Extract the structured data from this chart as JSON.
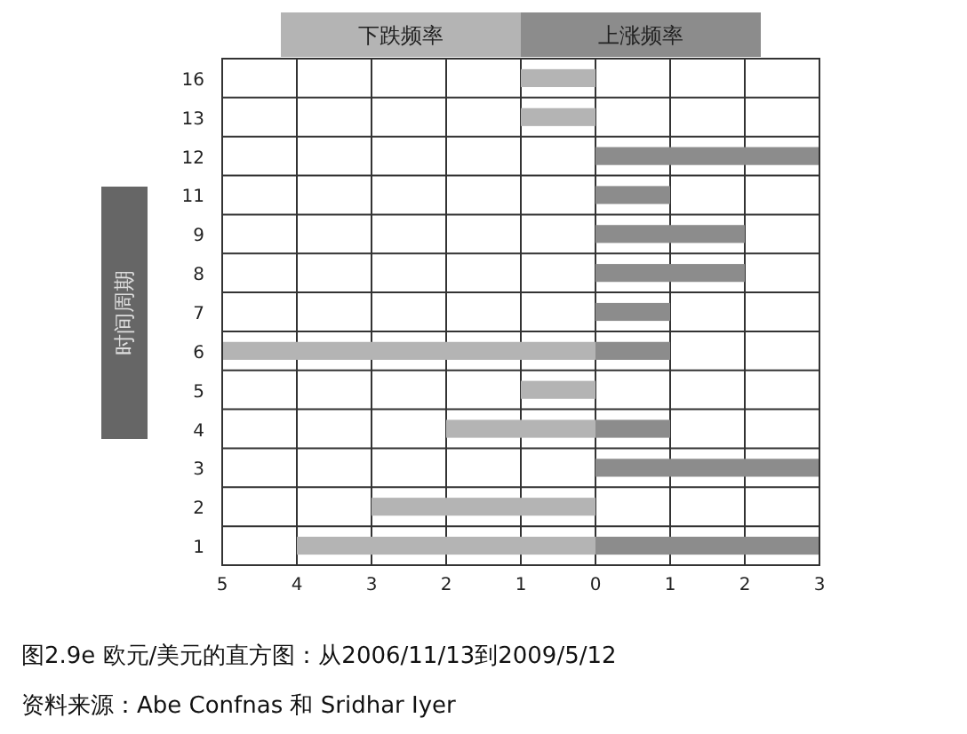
{
  "chart_data": {
    "type": "bar",
    "orientation": "horizontal",
    "stacked": true,
    "categories": [
      "16",
      "13",
      "12",
      "11",
      "9",
      "8",
      "7",
      "6",
      "5",
      "4",
      "3",
      "2",
      "1"
    ],
    "series": [
      {
        "name": "下跌频率",
        "color": "#b4b4b4",
        "values": [
          -1,
          -1,
          null,
          null,
          null,
          null,
          null,
          -5,
          -1,
          -2,
          null,
          -3,
          -4
        ]
      },
      {
        "name": "上涨频率",
        "color": "#8c8c8c",
        "values": [
          null,
          null,
          3,
          1,
          2,
          2,
          1,
          1,
          null,
          1,
          3,
          null,
          3
        ]
      }
    ],
    "xlim": [
      -5,
      3
    ],
    "xticks": [
      {
        "value": -5,
        "label": "5"
      },
      {
        "value": -4,
        "label": "4"
      },
      {
        "value": -3,
        "label": "3"
      },
      {
        "value": -2,
        "label": "2"
      },
      {
        "value": -1,
        "label": "1"
      },
      0,
      1,
      2,
      3
    ],
    "ylabel": "时间周期",
    "legend": "top",
    "grid": true,
    "annotations": [
      "图2.9e 欧元/美元的直方图：从2006/11/13到2009/5/12",
      "资料来源：Abe Confnas 和 Sridhar Iyer"
    ]
  }
}
